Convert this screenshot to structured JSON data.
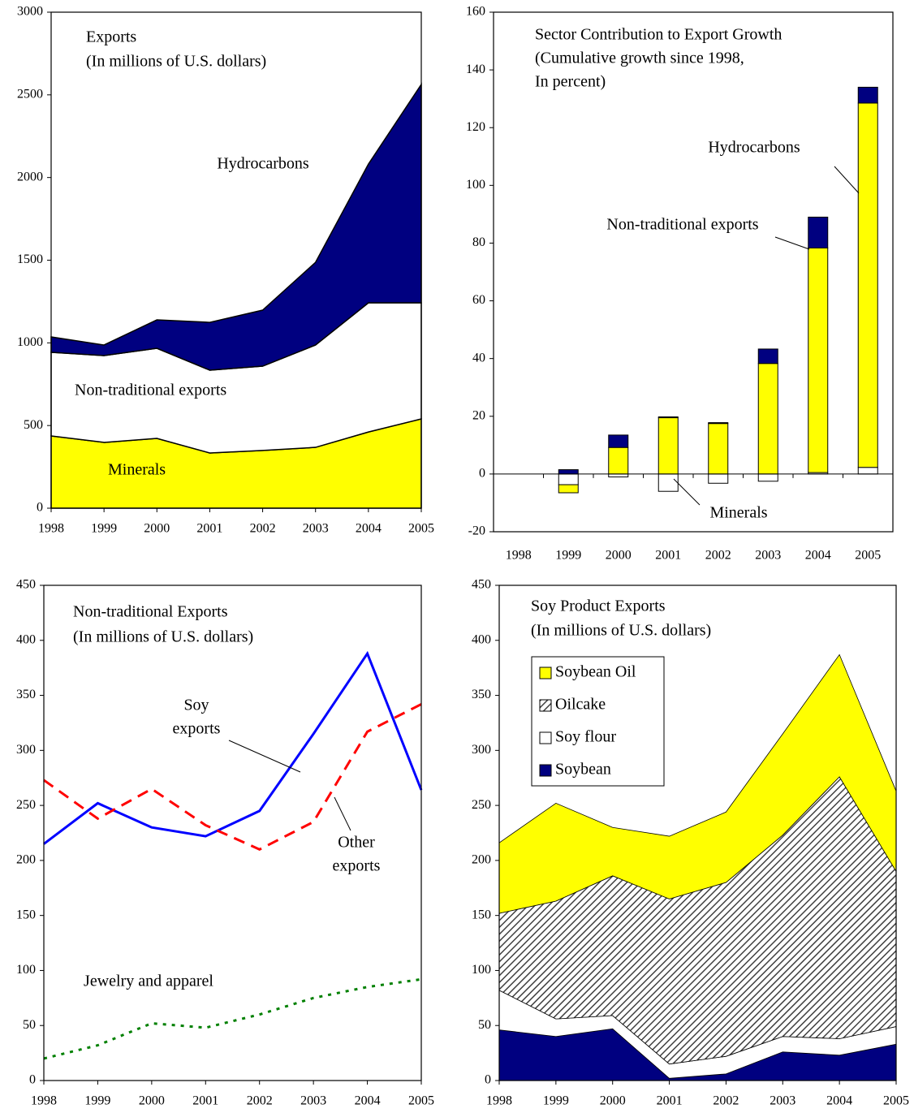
{
  "chart_data": [
    {
      "type": "area",
      "title_lines": [
        "Exports",
        "(In millions of U.S. dollars)"
      ],
      "x": [
        1998,
        1999,
        2000,
        2001,
        2002,
        2003,
        2004,
        2005
      ],
      "xlim": [
        1998,
        2005
      ],
      "xticks": [
        1998,
        1999,
        2000,
        2001,
        2002,
        2003,
        2004,
        2005
      ],
      "ylim": [
        0,
        3000
      ],
      "yticks": [
        0,
        500,
        1000,
        1500,
        2000,
        2500,
        3000
      ],
      "series": [
        {
          "name": "Minerals",
          "color": "#ffff00",
          "values": [
            437,
            398,
            422,
            334,
            349,
            368,
            461,
            540
          ]
        },
        {
          "name": "Non-traditional exports",
          "color": "#ffffff",
          "values": [
            506,
            525,
            545,
            501,
            510,
            619,
            781,
            702
          ]
        },
        {
          "name": "Hydrocarbons",
          "color": "#000080",
          "values": [
            93,
            64,
            172,
            289,
            339,
            500,
            839,
            1321
          ]
        }
      ]
    },
    {
      "type": "bar",
      "title_lines": [
        "Sector Contribution to Export Growth",
        "(Cumulative growth since 1998,",
        "In percent)"
      ],
      "categories": [
        "1998",
        "1999",
        "2000",
        "2001",
        "2002",
        "2003",
        "2004",
        "2005"
      ],
      "ylim": [
        -20,
        160
      ],
      "yticks": [
        -20,
        0,
        20,
        40,
        60,
        80,
        100,
        120,
        140,
        160
      ],
      "series": [
        {
          "name": "Minerals",
          "color": "#ffffff",
          "values": [
            0,
            -3.7,
            -1,
            -6,
            -3.2,
            -2.5,
            0.5,
            2.3
          ]
        },
        {
          "name": "Non-traditional exports",
          "color": "#ffff00",
          "values": [
            0,
            -2.8,
            9.2,
            19.5,
            17.5,
            38.3,
            77.8,
            126.2
          ]
        },
        {
          "name": "Hydrocarbons",
          "color": "#000080",
          "values": [
            0,
            1.5,
            4.3,
            0.3,
            0.3,
            5,
            10.7,
            5.5
          ]
        }
      ]
    },
    {
      "type": "line",
      "title_lines": [
        "Non-traditional Exports",
        "(In millions of U.S. dollars)"
      ],
      "x": [
        1998,
        1999,
        2000,
        2001,
        2002,
        2003,
        2004,
        2005
      ],
      "xlim": [
        1998,
        2005
      ],
      "xticks": [
        1998,
        1999,
        2000,
        2001,
        2002,
        2003,
        2004,
        2005
      ],
      "ylim": [
        0,
        450
      ],
      "yticks": [
        0,
        50,
        100,
        150,
        200,
        250,
        300,
        350,
        400,
        450
      ],
      "series": [
        {
          "name_lines": [
            "Soy",
            "exports"
          ],
          "color": "#0000ff",
          "dash": "solid",
          "values": [
            215,
            252,
            230,
            222,
            245,
            315,
            388,
            264
          ]
        },
        {
          "name_lines": [
            "Other",
            "exports"
          ],
          "color": "#ff0000",
          "dash": "dashed",
          "values": [
            273,
            238,
            265,
            232,
            210,
            235,
            317,
            342
          ]
        },
        {
          "name_lines": [
            "Jewelry and apparel"
          ],
          "color": "#008000",
          "dash": "dotted",
          "values": [
            20,
            32,
            52,
            48,
            60,
            75,
            85,
            92
          ]
        }
      ]
    },
    {
      "type": "area",
      "title_lines": [
        "Soy Product Exports",
        "(In millions of U.S. dollars)"
      ],
      "x": [
        1998,
        1999,
        2000,
        2001,
        2002,
        2003,
        2004,
        2005
      ],
      "xlim": [
        1998,
        2005
      ],
      "xticks": [
        1998,
        1999,
        2000,
        2001,
        2002,
        2003,
        2004,
        2005
      ],
      "ylim": [
        0,
        450
      ],
      "yticks": [
        0,
        50,
        100,
        150,
        200,
        250,
        300,
        350,
        400,
        450
      ],
      "legend": "upper left",
      "series": [
        {
          "name": "Soybean",
          "color": "#000080",
          "values": [
            46,
            40,
            47,
            2,
            6,
            26,
            23,
            33
          ]
        },
        {
          "name": "Soy flour",
          "color": "#ffffff",
          "values": [
            36,
            16,
            12,
            13,
            16,
            14,
            15,
            16
          ]
        },
        {
          "name": "Oilcake",
          "color": "#404040",
          "pattern": "hatch",
          "values": [
            70,
            107,
            127,
            150,
            158,
            183,
            238,
            141
          ]
        },
        {
          "name": "Soybean Oil",
          "color": "#ffff00",
          "values": [
            64,
            89,
            44,
            57,
            64,
            92,
            111,
            73
          ]
        }
      ]
    }
  ]
}
